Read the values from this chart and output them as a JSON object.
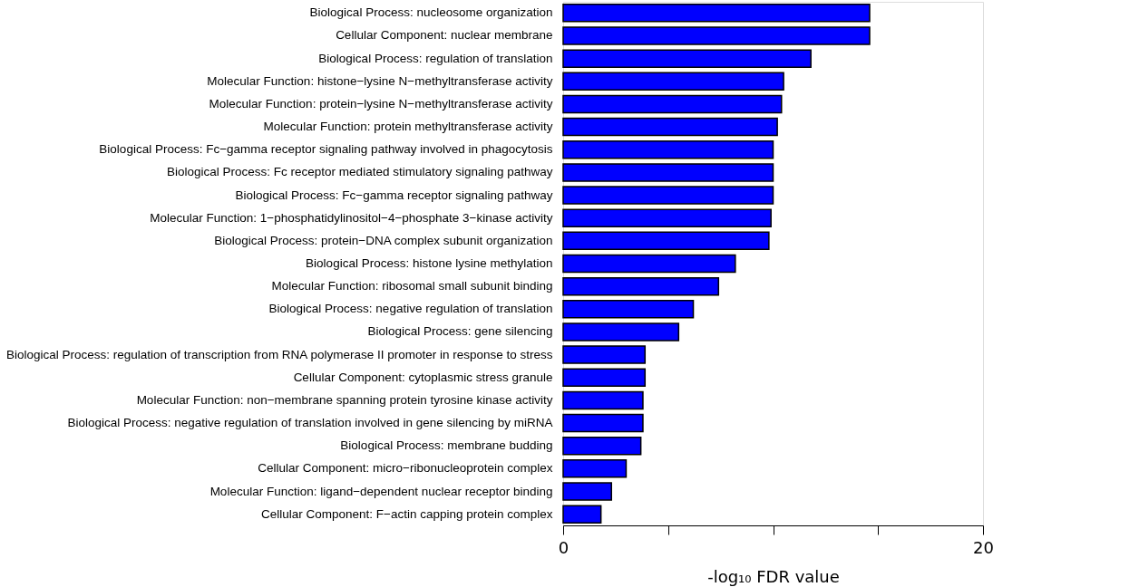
{
  "chart_data": {
    "type": "bar",
    "orientation": "horizontal",
    "categories": [
      "Biological Process: nucleosome organization",
      "Cellular Component: nuclear membrane",
      "Biological Process: regulation of translation",
      "Molecular Function: histone−lysine N−methyltransferase activity",
      "Molecular Function: protein−lysine N−methyltransferase activity",
      "Molecular Function: protein methyltransferase activity",
      "Biological Process: Fc−gamma receptor signaling pathway involved in phagocytosis",
      "Biological Process: Fc receptor mediated stimulatory signaling pathway",
      "Biological Process: Fc−gamma receptor signaling pathway",
      "Molecular Function: 1−phosphatidylinositol−4−phosphate 3−kinase activity",
      "Biological Process: protein−DNA complex subunit organization",
      "Biological Process: histone lysine methylation",
      "Molecular Function: ribosomal small subunit binding",
      "Biological Process: negative regulation of translation",
      "Biological Process: gene silencing",
      "Biological Process: regulation of transcription from RNA polymerase II promoter in response to stress",
      "Cellular Component: cytoplasmic stress granule",
      "Molecular Function: non−membrane spanning protein tyrosine kinase activity",
      "Biological Process: negative regulation of translation involved in gene silencing by miRNA",
      "Biological Process: membrane budding",
      "Cellular Component: micro−ribonucleoprotein complex",
      "Molecular Function: ligand−dependent nuclear receptor binding",
      "Cellular Component: F−actin capping protein complex"
    ],
    "values": [
      14.6,
      14.6,
      11.8,
      10.5,
      10.4,
      10.2,
      10.0,
      10.0,
      10.0,
      9.9,
      9.8,
      8.2,
      7.4,
      6.2,
      5.5,
      3.9,
      3.9,
      3.8,
      3.8,
      3.7,
      3.0,
      2.3,
      1.8
    ],
    "color": "#0000ff",
    "xlabel": "-log₁₀ FDR value",
    "xlim": [
      0,
      20
    ],
    "xticks": [
      0,
      {
        "value": 5,
        "label": null
      },
      {
        "value": 10,
        "label": null
      },
      {
        "value": 15,
        "label": null
      },
      20
    ],
    "grid": false
  }
}
